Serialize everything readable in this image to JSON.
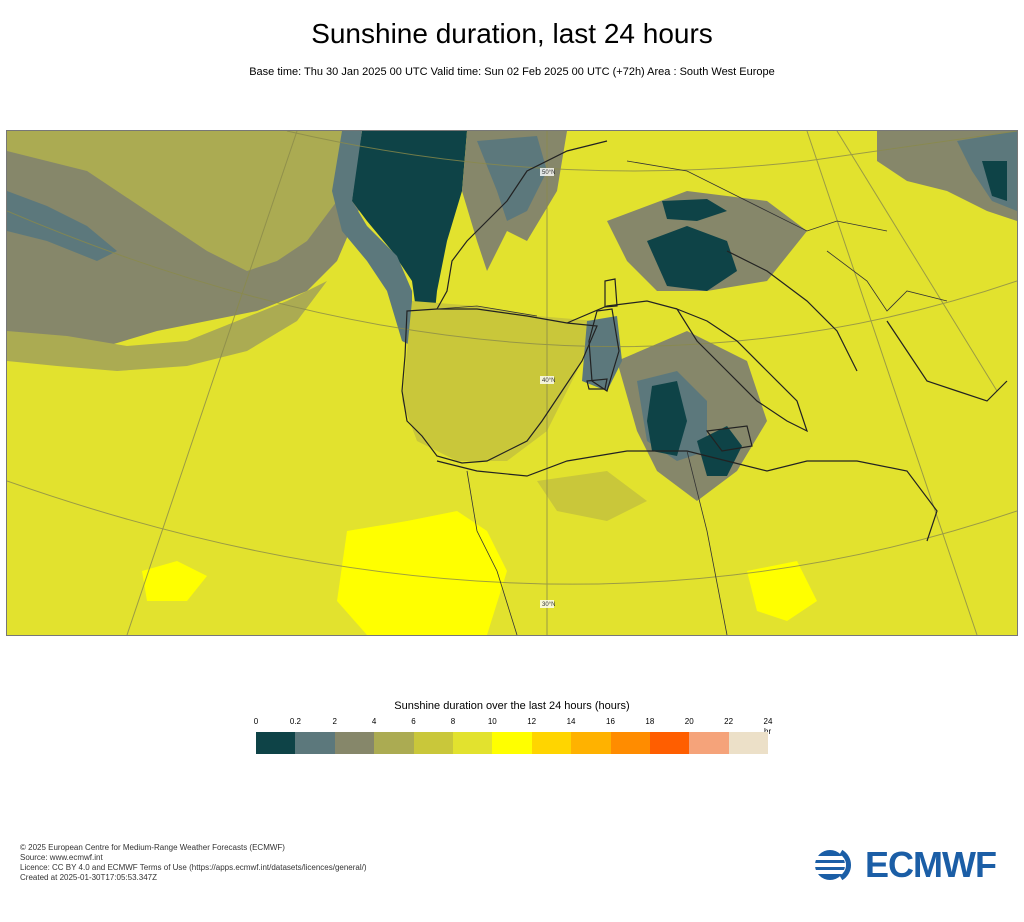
{
  "title": "Sunshine duration, last 24 hours",
  "subtitle": "Base time: Thu 30 Jan 2025 00 UTC Valid time: Sun 02 Feb 2025 00 UTC (+72h) Area : South West Europe",
  "map": {
    "area": "South West Europe",
    "graticule_labels": [
      "50°N",
      "40°N",
      "30°N"
    ]
  },
  "legend": {
    "title": "Sunshine duration over the last 24 hours (hours)",
    "unit": "hr",
    "ticks": [
      "0",
      "0.2",
      "2",
      "4",
      "6",
      "8",
      "10",
      "12",
      "14",
      "16",
      "18",
      "20",
      "22",
      "24"
    ],
    "colors": [
      "#0e4347",
      "#5c787c",
      "#86876a",
      "#abab52",
      "#c9c73a",
      "#e2e22e",
      "#ffff00",
      "#ffd500",
      "#ffb200",
      "#ff8c00",
      "#ff5e00",
      "#f5a37a",
      "#ece0c8"
    ]
  },
  "footer": {
    "lines": [
      "© 2025 European Centre for Medium-Range Weather Forecasts (ECMWF)",
      "Source: www.ecmwf.int",
      "Licence: CC BY 4.0 and ECMWF Terms of Use (https://apps.ecmwf.int/datasets/licences/general/)",
      "Created at 2025-01-30T17:05:53.347Z"
    ]
  },
  "logo": {
    "text": "ECMWF",
    "color": "#1b5ea6"
  }
}
